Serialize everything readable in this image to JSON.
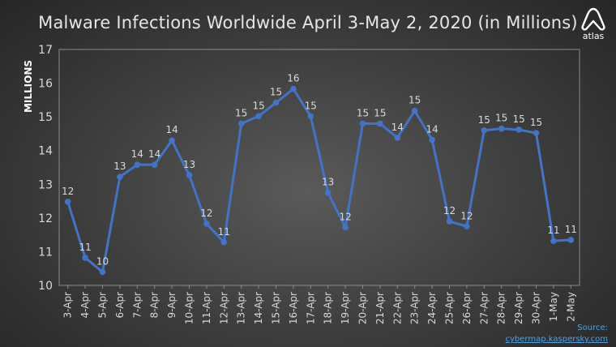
{
  "title": "Malware Infections Worldwide April 3-May 2, 2020 (in Millions)",
  "logo": {
    "icon": "atlas-logo-icon",
    "text": "atlas"
  },
  "source": {
    "label": "Source:",
    "link": "cybermap.kaspersky.com"
  },
  "colors": {
    "line": "#4472C4",
    "text": "#d9d9d9",
    "grid": "#8c8c8c",
    "link": "#4aa3df"
  },
  "chart_data": {
    "type": "line",
    "title": "Malware Infections Worldwide April 3-May 2, 2020 (in Millions)",
    "ylabel": "MILLIONS",
    "xlabel": "",
    "ylim": [
      10,
      17
    ],
    "yticks": [
      10,
      11,
      12,
      13,
      14,
      15,
      16,
      17
    ],
    "grid": false,
    "categories": [
      "3-Apr",
      "4-Apr",
      "5-Apr",
      "6-Apr",
      "7-Apr",
      "8-Apr",
      "9-Apr",
      "10-Apr",
      "11-Apr",
      "12-Apr",
      "13-Apr",
      "14-Apr",
      "15-Apr",
      "16-Apr",
      "17-Apr",
      "18-Apr",
      "19-Apr",
      "20-Apr",
      "21-Apr",
      "22-Apr",
      "23-Apr",
      "24-Apr",
      "25-Apr",
      "26-Apr",
      "27-Apr",
      "28-Apr",
      "29-Apr",
      "30-Apr",
      "1-May",
      "2-May"
    ],
    "series": [
      {
        "values": [
          12.48,
          10.82,
          10.4,
          13.22,
          13.58,
          13.58,
          14.3,
          13.27,
          11.83,
          11.28,
          14.8,
          15.02,
          15.42,
          15.83,
          15.02,
          12.75,
          11.72,
          14.8,
          14.8,
          14.38,
          15.18,
          14.32,
          11.9,
          11.75,
          14.6,
          14.65,
          14.62,
          14.52,
          11.32,
          11.35
        ],
        "labels": [
          "12",
          "11",
          "10",
          "13",
          "14",
          "14",
          "14",
          "13",
          "12",
          "11",
          "15",
          "15",
          "15",
          "16",
          "15",
          "13",
          "12",
          "15",
          "15",
          "14",
          "15",
          "14",
          "12",
          "12",
          "15",
          "15",
          "15",
          "15",
          "11",
          "11"
        ]
      }
    ]
  }
}
